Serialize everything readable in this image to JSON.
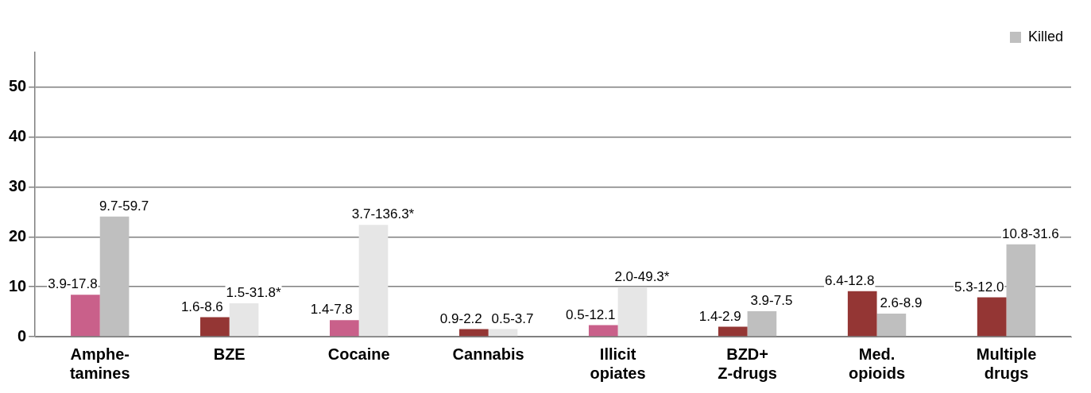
{
  "chart_data": {
    "type": "bar",
    "categories": [
      "Amphe-\ntamines",
      "BZE",
      "Cocaine",
      "Cannabis",
      "Illicit\nopiates",
      "BZD+\nZ-drugs",
      "Med.\nopioids",
      "Multiple\ndrugs"
    ],
    "series": [
      {
        "color": "#943634",
        "colors": [
          "#c9608a",
          "#943634",
          "#c9608a",
          "#943634",
          "#c9608a",
          "#943634",
          "#943634",
          "#943634"
        ],
        "values": [
          8.4,
          3.9,
          3.3,
          1.5,
          2.3,
          2.0,
          9.1,
          7.9
        ],
        "value_labels": [
          "3.9-17.8",
          "1.6-8.6",
          "1.4-7.8",
          "0.9-2.2",
          "0.5-12.1",
          "1.4-2.9",
          "6.4-12.8",
          "5.3-12.0"
        ]
      },
      {
        "name": "Killed",
        "color": "#bfbfbf",
        "colors": [
          "#bfbfbf",
          "#e6e6e6",
          "#e6e6e6",
          "#e6e6e6",
          "#e6e6e6",
          "#bfbfbf",
          "#bfbfbf",
          "#bfbfbf"
        ],
        "values": [
          24.1,
          6.7,
          22.4,
          1.5,
          9.9,
          5.1,
          4.6,
          18.5
        ],
        "value_labels": [
          "9.7-59.7",
          "1.5-31.8*",
          "3.7-136.3*",
          "0.5-3.7",
          "2.0-49.3*",
          "3.9-7.5",
          "2.6-8.9",
          "10.8-31.6"
        ]
      }
    ],
    "ylim": [
      0,
      57
    ],
    "yticks": [
      0,
      10,
      20,
      30,
      40,
      50
    ],
    "grid": "y",
    "legend": "top right"
  }
}
